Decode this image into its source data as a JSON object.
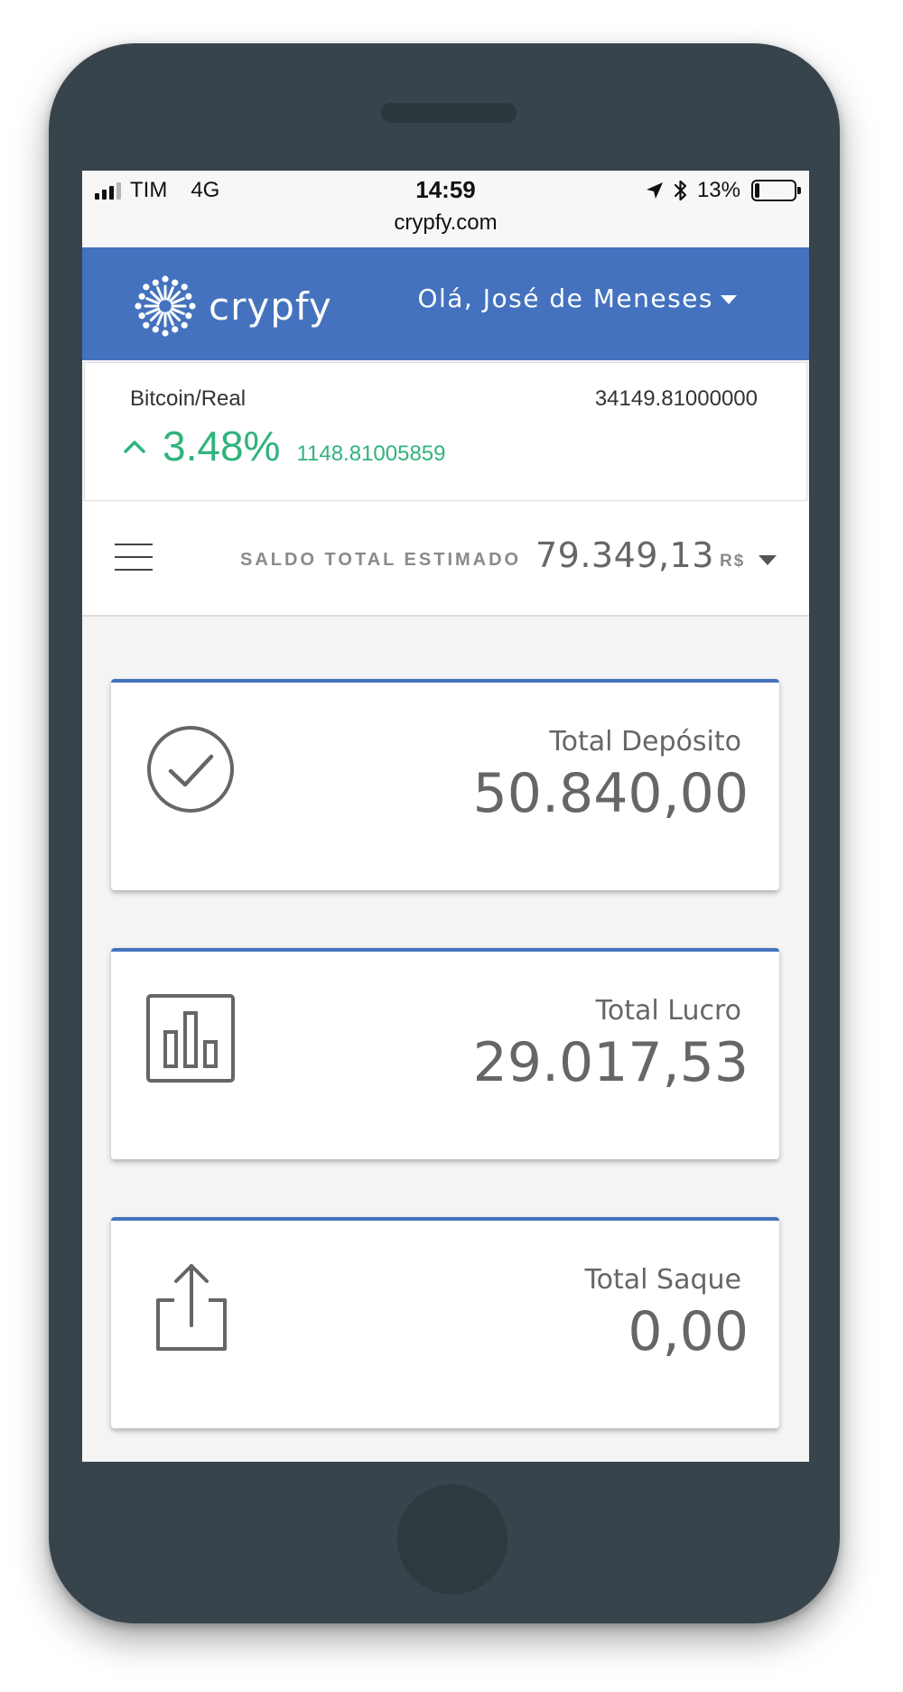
{
  "status_bar": {
    "carrier": "TIM",
    "network": "4G",
    "time": "14:59",
    "battery": "13%",
    "battery_level": 0.13,
    "icons": [
      "signal-icon",
      "location-arrow-icon",
      "bluetooth-icon",
      "battery-icon"
    ]
  },
  "browser": {
    "url": "crypfy.com"
  },
  "header": {
    "logo_text": "crypfy",
    "greeting": "Olá, José de Meneses",
    "background_color": "#4472be"
  },
  "ticker": {
    "pair": "Bitcoin/Real",
    "price": "34149.81000000",
    "change_percent": "3.48%",
    "change_value": "1148.81005859",
    "change_color": "#30b37c"
  },
  "balance": {
    "label": "SALDO TOTAL ESTIMADO",
    "value": "79.349,13",
    "currency": "R$"
  },
  "cards": [
    {
      "label": "Total Depósito",
      "value": "50.840,00",
      "icon": "check-circle-icon"
    },
    {
      "label": "Total Lucro",
      "value": "29.017,53",
      "icon": "bar-chart-icon"
    },
    {
      "label": "Total Saque",
      "value": "0,00",
      "icon": "share-upload-icon"
    }
  ]
}
